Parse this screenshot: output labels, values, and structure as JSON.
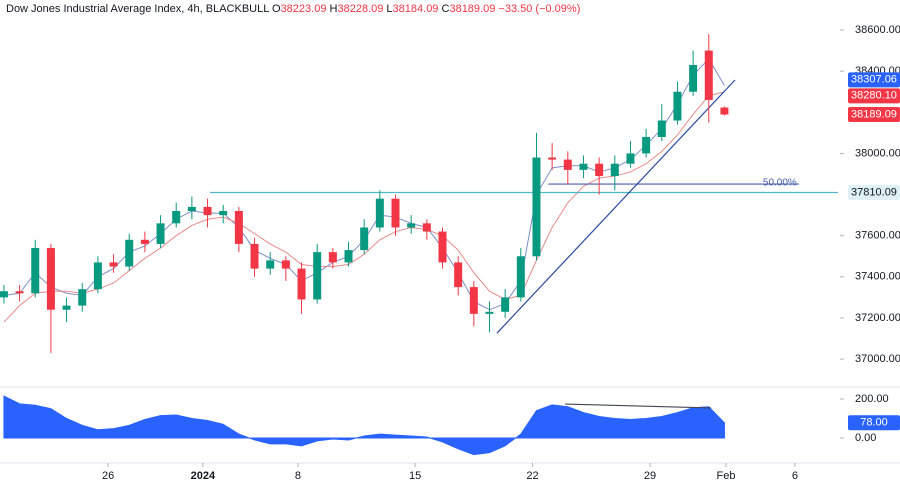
{
  "chart_data": [
    {
      "type": "candlestick",
      "header": {
        "symbol": "Dow Jones Industrial Average Index, 4h, BLACKBULL",
        "ohlc": [
          {
            "label": "O",
            "value": "38223.09"
          },
          {
            "label": "H",
            "value": "38228.09"
          },
          {
            "label": "L",
            "value": "38184.09"
          },
          {
            "label": "C",
            "value": "38189.09"
          }
        ],
        "change": "−33.50 (−0.09%)"
      },
      "up_color": "#089981",
      "down_color": "#f23645",
      "xlim": [
        0,
        214
      ],
      "ylim": [
        36874,
        38746
      ],
      "yticks": [
        {
          "value": 38600,
          "label": "38600.00"
        },
        {
          "value": 38400,
          "label": "38400.00"
        },
        {
          "value": 38000,
          "label": "38000.00"
        },
        {
          "value": 37600,
          "label": "37600.00"
        },
        {
          "value": 37400,
          "label": "37400.00"
        },
        {
          "value": 37200,
          "label": "37200.00"
        },
        {
          "value": 37000,
          "label": "37000.00"
        }
      ],
      "x": [
        1,
        5,
        9,
        13,
        17,
        21,
        25,
        29,
        33,
        37,
        41,
        45,
        49,
        53,
        57,
        61,
        65,
        69,
        73,
        77,
        81,
        85,
        89,
        93,
        97,
        101,
        105,
        109,
        113,
        117,
        121,
        125,
        129,
        133,
        137,
        141,
        145,
        149,
        153,
        157,
        161,
        165,
        169,
        173,
        177,
        181,
        185
      ],
      "open": [
        37300,
        37330,
        37320,
        37540,
        37240,
        37260,
        37340,
        37470,
        37450,
        37580,
        37560,
        37660,
        37720,
        37740,
        37700,
        37720,
        37560,
        37440,
        37480,
        37440,
        37290,
        37520,
        37470,
        37530,
        37640,
        37780,
        37640,
        37660,
        37620,
        37470,
        37350,
        37220,
        37230,
        37300,
        37500,
        37980,
        37970,
        37920,
        37950,
        37890,
        37950,
        38000,
        38080,
        38160,
        38300,
        38500,
        38223.09
      ],
      "high": [
        37360,
        37360,
        37580,
        37560,
        37300,
        37370,
        37500,
        37510,
        37610,
        37620,
        37700,
        37760,
        37790,
        37780,
        37750,
        37740,
        37590,
        37520,
        37500,
        37470,
        37560,
        37540,
        37570,
        37680,
        37820,
        37800,
        37700,
        37680,
        37640,
        37500,
        37380,
        37280,
        37340,
        37540,
        38100,
        38050,
        38010,
        37990,
        37980,
        37990,
        38060,
        38120,
        38240,
        38350,
        38500,
        38580,
        38228.09
      ],
      "low": [
        37270,
        37280,
        37300,
        37030,
        37180,
        37230,
        37320,
        37420,
        37430,
        37520,
        37540,
        37640,
        37680,
        37640,
        37660,
        37520,
        37400,
        37410,
        37380,
        37220,
        37270,
        37440,
        37450,
        37510,
        37620,
        37600,
        37610,
        37580,
        37440,
        37310,
        37160,
        37130,
        37200,
        37280,
        37480,
        37920,
        37850,
        37880,
        37800,
        37820,
        37930,
        37980,
        38060,
        38140,
        38280,
        38150,
        38184.09
      ],
      "close": [
        37330,
        37320,
        37540,
        37240,
        37260,
        37340,
        37470,
        37450,
        37580,
        37560,
        37660,
        37720,
        37740,
        37700,
        37720,
        37560,
        37440,
        37480,
        37440,
        37290,
        37520,
        37470,
        37530,
        37640,
        37780,
        37640,
        37660,
        37620,
        37470,
        37350,
        37220,
        37230,
        37300,
        37500,
        37980,
        37970,
        37920,
        37950,
        37890,
        37950,
        38000,
        38080,
        38160,
        38300,
        38430,
        38260,
        38189.09
      ],
      "overlays": [
        {
          "color": "#7d8fc9",
          "values": [
            37310,
            37320,
            37420,
            37350,
            37320,
            37310,
            37400,
            37440,
            37520,
            37550,
            37610,
            37680,
            37720,
            37710,
            37710,
            37640,
            37530,
            37490,
            37460,
            37380,
            37420,
            37470,
            37500,
            37580,
            37700,
            37690,
            37660,
            37640,
            37540,
            37420,
            37280,
            37240,
            37270,
            37380,
            37800,
            37930,
            37940,
            37940,
            37910,
            37930,
            37970,
            38040,
            38120,
            38240,
            38380,
            38460,
            38330
          ]
        },
        {
          "color": "#e88a8a",
          "values": [
            37180,
            37260,
            37320,
            37330,
            37330,
            37320,
            37340,
            37370,
            37430,
            37490,
            37540,
            37600,
            37650,
            37680,
            37690,
            37660,
            37610,
            37560,
            37520,
            37460,
            37450,
            37450,
            37460,
            37510,
            37580,
            37620,
            37640,
            37630,
            37600,
            37530,
            37420,
            37330,
            37290,
            37310,
            37480,
            37640,
            37760,
            37840,
            37880,
            37890,
            37910,
            37950,
            38010,
            38090,
            38190,
            38280,
            38300
          ]
        }
      ],
      "lines": [
        {
          "color": "#4cb8c8",
          "x": [
            53.6,
            214
          ],
          "y": [
            37810.09,
            37810.09
          ]
        },
        {
          "color": "#4a5da8",
          "x": [
            140,
            204
          ],
          "y": [
            37851,
            37851
          ],
          "label": "50.00%"
        },
        {
          "color": "#2a4aa0",
          "x": [
            126.9,
            187.7
          ],
          "y": [
            37126,
            38357
          ]
        }
      ],
      "price_labels": [
        {
          "value": 38307.06,
          "label": "38307.06",
          "color": "#2962ff",
          "text_color": "#ffffff"
        },
        {
          "value": 38280.1,
          "label": "38280.10",
          "color": "#f23645",
          "text_color": "#ffffff"
        },
        {
          "value": 38189.09,
          "label": "38189.09",
          "color": "#f23645",
          "text_color": "#ffffff"
        },
        {
          "value": 37810.09,
          "label": "37810.09",
          "color": "#dff1f4",
          "text_color": "#131722"
        }
      ]
    },
    {
      "type": "area",
      "color": "#2962ff",
      "xlim": [
        0,
        214
      ],
      "ylim": [
        -123,
        246
      ],
      "yticks": [
        {
          "value": 200,
          "label": "200.00"
        },
        {
          "value": 0,
          "label": "0.00"
        }
      ],
      "xticks": [
        {
          "value": 27.6,
          "label": "26"
        },
        {
          "value": 51.8,
          "label": "2024"
        },
        {
          "value": 76.1,
          "label": "8"
        },
        {
          "value": 106,
          "label": "15"
        },
        {
          "value": 136,
          "label": "22"
        },
        {
          "value": 166,
          "label": "29"
        },
        {
          "value": 185.4,
          "label": "Feb"
        },
        {
          "value": 203,
          "label": "6"
        }
      ],
      "x": [
        1,
        5,
        9,
        13,
        17,
        21,
        25,
        29,
        33,
        37,
        41,
        45,
        49,
        53,
        57,
        61,
        65,
        69,
        73,
        77,
        81,
        85,
        89,
        93,
        97,
        101,
        105,
        109,
        113,
        117,
        121,
        125,
        129,
        133,
        137,
        141,
        145,
        149,
        153,
        157,
        161,
        165,
        169,
        173,
        177,
        181,
        185
      ],
      "values": [
        215,
        175,
        168,
        150,
        100,
        65,
        42,
        48,
        65,
        95,
        115,
        118,
        100,
        90,
        70,
        20,
        -10,
        -30,
        -30,
        -40,
        -15,
        -5,
        -10,
        10,
        20,
        15,
        10,
        5,
        -20,
        -55,
        -85,
        -75,
        -40,
        20,
        140,
        170,
        160,
        130,
        110,
        100,
        95,
        100,
        110,
        130,
        155,
        160,
        78
      ],
      "lines": [
        {
          "color": "#434651",
          "x": [
            144.3,
            181.6
          ],
          "y": [
            174,
            154
          ]
        }
      ],
      "last_label": {
        "value": 78,
        "label": "78.00",
        "color": "#2962ff",
        "text_color": "#ffffff"
      }
    }
  ]
}
